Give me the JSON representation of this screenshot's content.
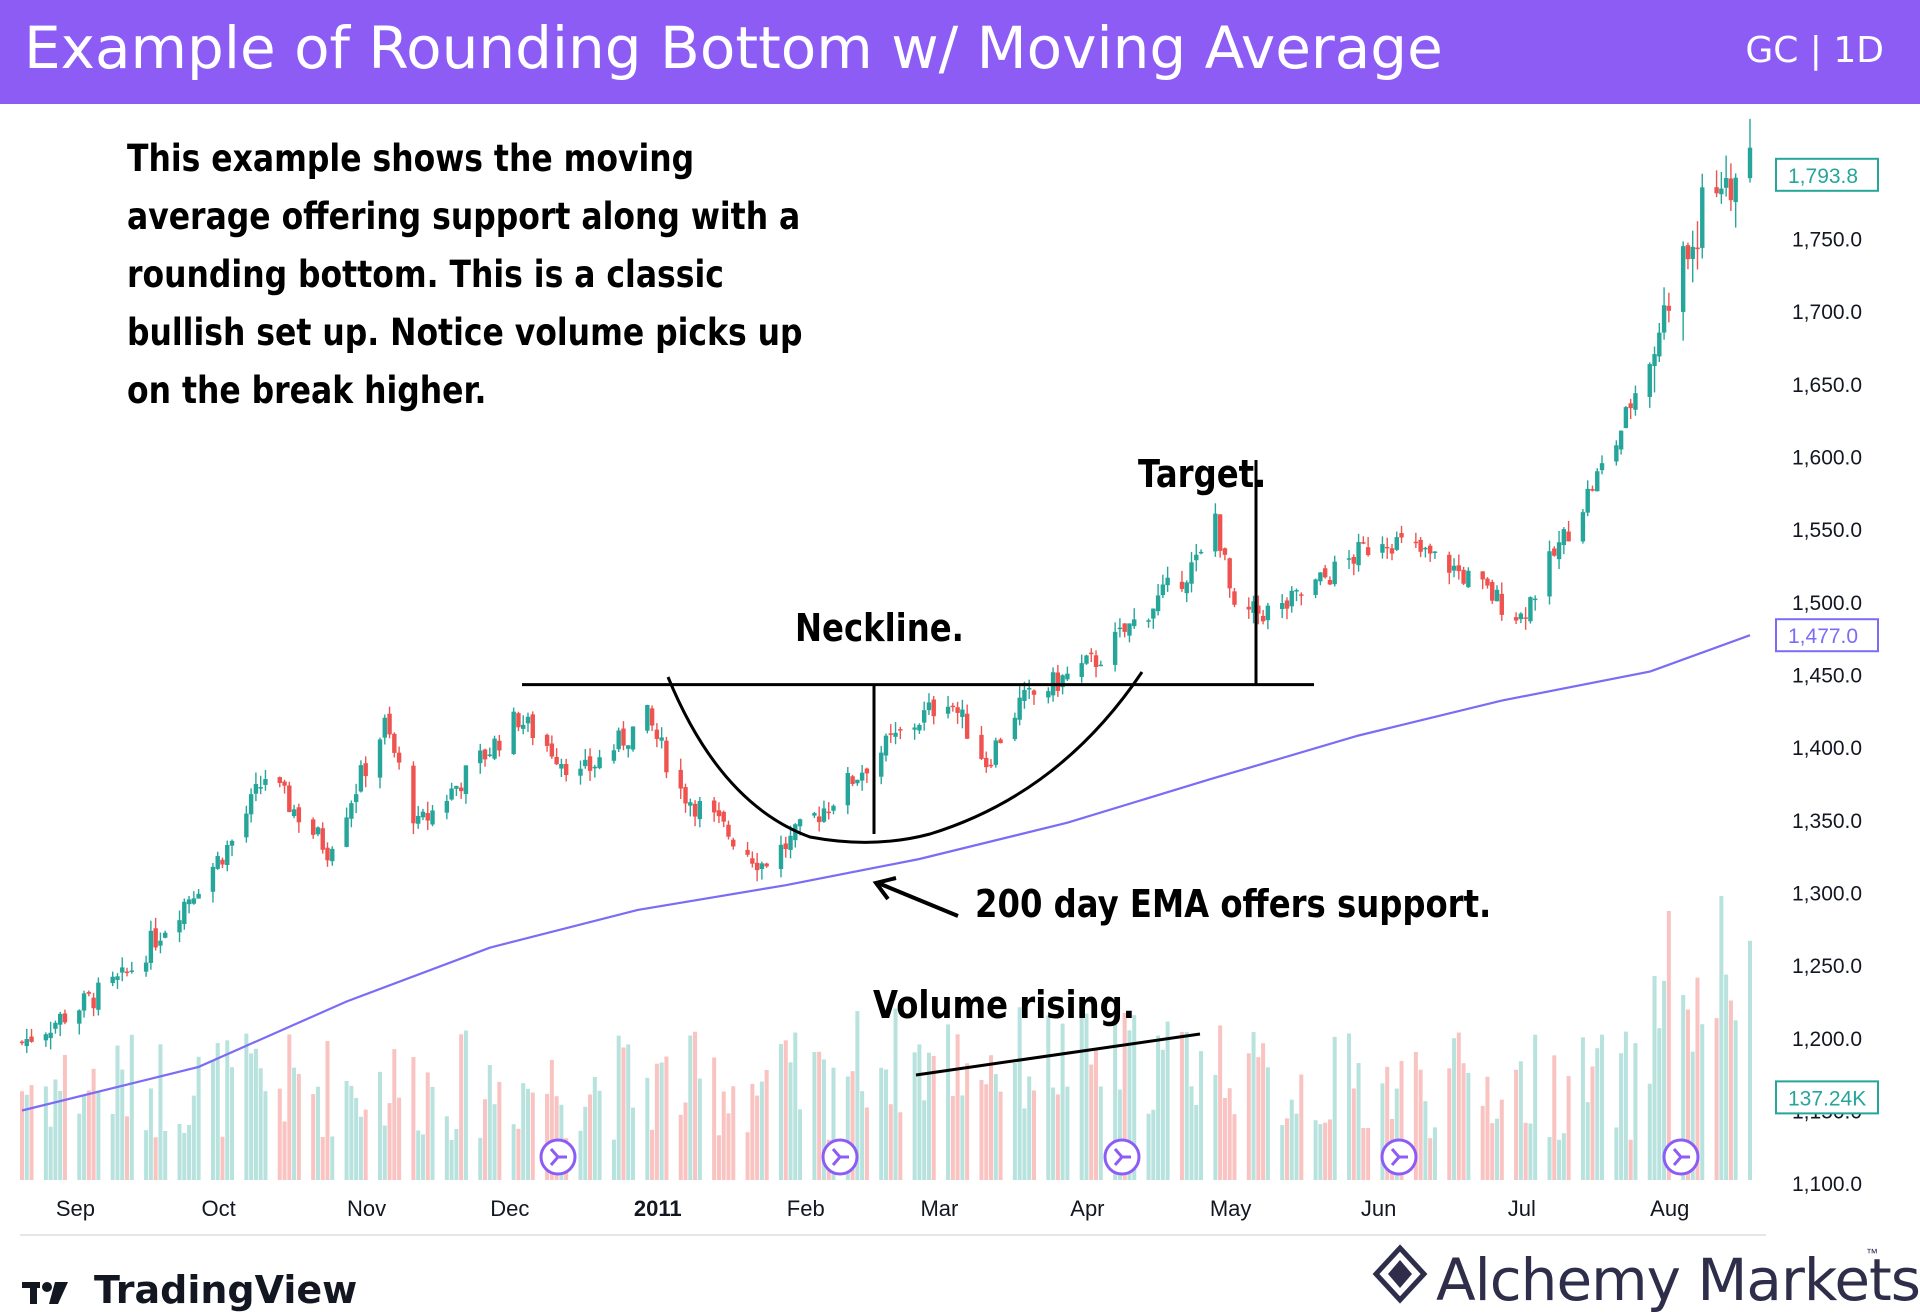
{
  "header": {
    "title": "Example of Rounding Bottom w/ Moving Average",
    "symbol": "GC | 1D",
    "bg_color": "#8C5CF5"
  },
  "annotations": {
    "note": "This example shows the moving average offering support along with a rounding bottom. This is a classic bullish set up. Notice volume picks up on the break higher.",
    "neckline": "Neckline.",
    "target": "Target.",
    "ema": "200 day EMA offers support.",
    "volume": "Volume rising."
  },
  "chart_data": {
    "type": "candlestick",
    "title": "",
    "x_labels": [
      "Sep",
      "Oct",
      "Nov",
      "Dec",
      "2011",
      "Feb",
      "Mar",
      "Apr",
      "May",
      "Jun",
      "Jul",
      "Aug"
    ],
    "y_ticks": [
      "1,100.0",
      "1,150.0",
      "1,200.0",
      "1,250.0",
      "1,300.0",
      "1,350.0",
      "1,400.0",
      "1,450.0",
      "1,500.0",
      "1,550.0",
      "1,600.0",
      "1,650.0",
      "1,700.0",
      "1,750.0",
      "1,800.0"
    ],
    "ylim": [
      1065,
      1826
    ],
    "last_price_label": "1,793.8",
    "ema_label": "1,477.0",
    "volume_label": "137.24K",
    "neckline_level": 1443,
    "series": [
      {
        "name": "Price path",
        "points": [
          {
            "date": "2010-08-25",
            "value": 1197
          },
          {
            "date": "2010-09-15",
            "value": 1240
          },
          {
            "date": "2010-10-08",
            "value": 1335
          },
          {
            "date": "2010-10-15",
            "value": 1380
          },
          {
            "date": "2010-10-28",
            "value": 1330
          },
          {
            "date": "2010-11-09",
            "value": 1415
          },
          {
            "date": "2010-11-16",
            "value": 1345
          },
          {
            "date": "2010-12-07",
            "value": 1420
          },
          {
            "date": "2010-12-20",
            "value": 1380
          },
          {
            "date": "2011-01-03",
            "value": 1420
          },
          {
            "date": "2011-01-10",
            "value": 1370
          },
          {
            "date": "2011-01-27",
            "value": 1320
          },
          {
            "date": "2011-02-02",
            "value": 1335
          },
          {
            "date": "2011-02-20",
            "value": 1395
          },
          {
            "date": "2011-03-07",
            "value": 1435
          },
          {
            "date": "2011-03-15",
            "value": 1390
          },
          {
            "date": "2011-03-22",
            "value": 1430
          },
          {
            "date": "2011-04-07",
            "value": 1460
          },
          {
            "date": "2011-04-29",
            "value": 1530
          },
          {
            "date": "2011-05-02",
            "value": 1560
          },
          {
            "date": "2011-05-06",
            "value": 1490
          },
          {
            "date": "2011-05-16",
            "value": 1495
          },
          {
            "date": "2011-06-06",
            "value": 1545
          },
          {
            "date": "2011-06-20",
            "value": 1525
          },
          {
            "date": "2011-07-05",
            "value": 1490
          },
          {
            "date": "2011-07-25",
            "value": 1610
          },
          {
            "date": "2011-08-10",
            "value": 1750
          },
          {
            "date": "2011-08-15",
            "value": 1790
          },
          {
            "date": "2011-08-22",
            "value": 1794
          }
        ]
      },
      {
        "name": "200 day EMA",
        "points": [
          {
            "date": "2010-08-25",
            "value": 1150
          },
          {
            "date": "2010-10-01",
            "value": 1180
          },
          {
            "date": "2010-11-01",
            "value": 1225
          },
          {
            "date": "2010-12-01",
            "value": 1262
          },
          {
            "date": "2011-01-01",
            "value": 1288
          },
          {
            "date": "2011-02-01",
            "value": 1305
          },
          {
            "date": "2011-03-01",
            "value": 1323
          },
          {
            "date": "2011-04-01",
            "value": 1348
          },
          {
            "date": "2011-05-01",
            "value": 1378
          },
          {
            "date": "2011-06-01",
            "value": 1408
          },
          {
            "date": "2011-07-01",
            "value": 1432
          },
          {
            "date": "2011-08-01",
            "value": 1452
          },
          {
            "date": "2011-08-22",
            "value": 1477
          }
        ]
      }
    ],
    "colors": {
      "up": "#26a69a",
      "down": "#ef5350",
      "ema": "#7b6cf6",
      "volume_up": "#b8e2dd",
      "volume_down": "#f8c3c1"
    }
  },
  "logos": {
    "tradingview": "TradingView",
    "alchemy": "Alchemy Markets",
    "trademark": "™"
  }
}
